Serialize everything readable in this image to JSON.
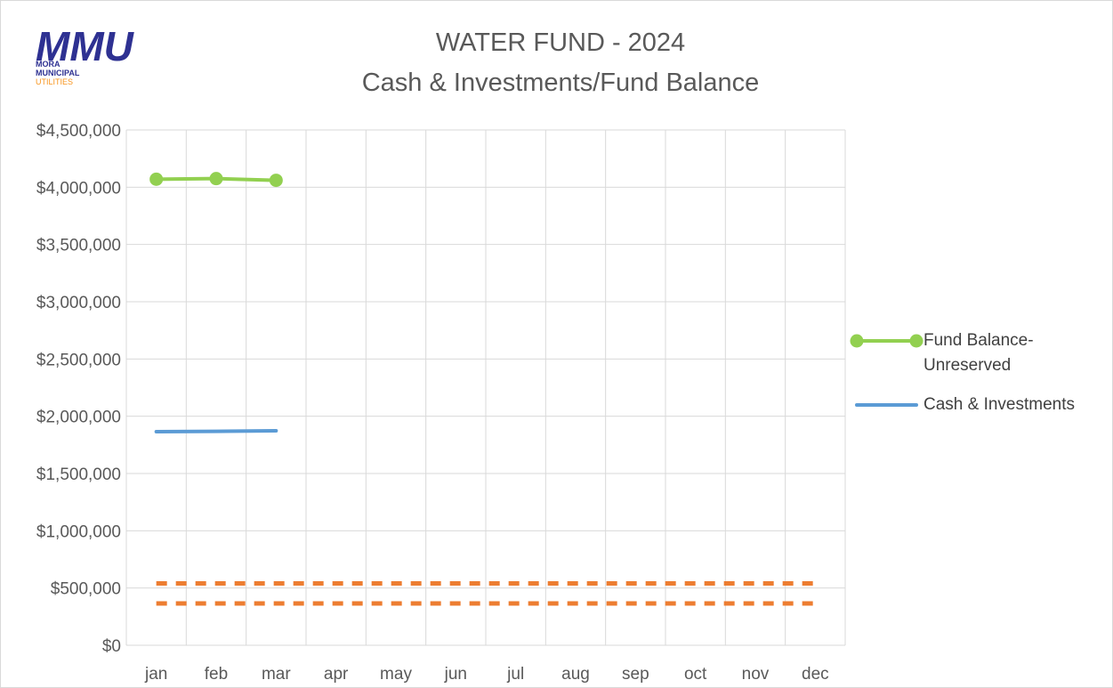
{
  "logo": {
    "mark": "MMU",
    "lines": [
      "MORA",
      "MUNICIPAL",
      "UTILITIES"
    ]
  },
  "chart_data": {
    "type": "line",
    "title": "WATER FUND - 2024",
    "subtitle": "Cash & Investments/Fund Balance",
    "categories": [
      "jan",
      "feb",
      "mar",
      "apr",
      "may",
      "jun",
      "jul",
      "aug",
      "sep",
      "oct",
      "nov",
      "dec"
    ],
    "series": [
      {
        "name": "Fund Balance-Unreserved",
        "color": "#92d050",
        "markers": true,
        "values": [
          4070000,
          4075000,
          4060000,
          null,
          null,
          null,
          null,
          null,
          null,
          null,
          null,
          null
        ]
      },
      {
        "name": "Cash & Investments",
        "color": "#5b9bd5",
        "values": [
          1865000,
          1868000,
          1873000,
          null,
          null,
          null,
          null,
          null,
          null,
          null,
          null,
          null
        ]
      },
      {
        "color": "#ed7d31",
        "dashed": true,
        "values": [
          540000,
          540000,
          540000,
          540000,
          540000,
          540000,
          540000,
          540000,
          540000,
          540000,
          540000,
          540000
        ]
      },
      {
        "color": "#ed7d31",
        "dashed": true,
        "values": [
          365000,
          365000,
          365000,
          365000,
          365000,
          365000,
          365000,
          365000,
          365000,
          365000,
          365000,
          365000
        ]
      }
    ],
    "ylim": [
      0,
      4500000
    ],
    "yticks": [
      {
        "value": 0,
        "label": "$0"
      },
      {
        "value": 500000,
        "label": "$500,000"
      },
      {
        "value": 1000000,
        "label": "$1,000,000"
      },
      {
        "value": 1500000,
        "label": "$1,500,000"
      },
      {
        "value": 2000000,
        "label": "$2,000,000"
      },
      {
        "value": 2500000,
        "label": "$2,500,000"
      },
      {
        "value": 3000000,
        "label": "$3,000,000"
      },
      {
        "value": 3500000,
        "label": "$3,500,000"
      },
      {
        "value": 4000000,
        "label": "$4,000,000"
      },
      {
        "value": 4500000,
        "label": "$4,500,000"
      }
    ],
    "grid": true,
    "legend": "right"
  }
}
